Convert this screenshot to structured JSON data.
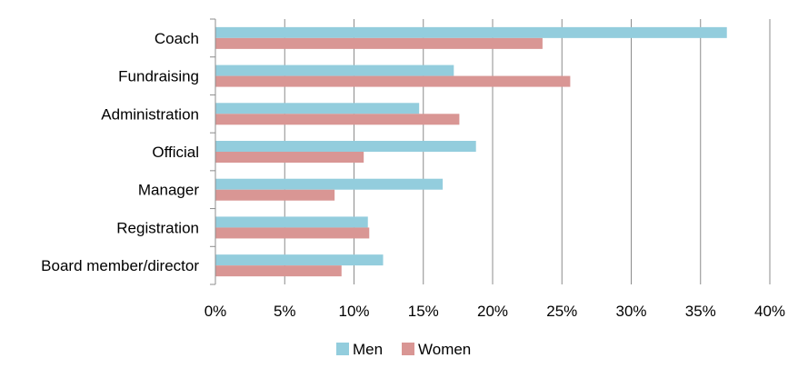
{
  "chart_data": {
    "type": "bar",
    "orientation": "horizontal",
    "categories": [
      "Coach",
      "Fundraising",
      "Administration",
      "Official",
      "Manager",
      "Registration",
      "Board member/director"
    ],
    "series": [
      {
        "name": "Men",
        "color": "#93CDDD",
        "values": [
          36.9,
          17.2,
          14.7,
          18.8,
          16.4,
          11.0,
          12.1
        ]
      },
      {
        "name": "Women",
        "color": "#D99694",
        "values": [
          23.6,
          25.6,
          17.6,
          10.7,
          8.6,
          11.1,
          9.1
        ]
      }
    ],
    "x_ticks": [
      "0%",
      "5%",
      "10%",
      "15%",
      "20%",
      "25%",
      "30%",
      "35%",
      "40%"
    ],
    "xlim": [
      0,
      40
    ],
    "grid": "vertical",
    "legend": {
      "position": "bottom",
      "items": [
        "Men",
        "Women"
      ]
    }
  }
}
